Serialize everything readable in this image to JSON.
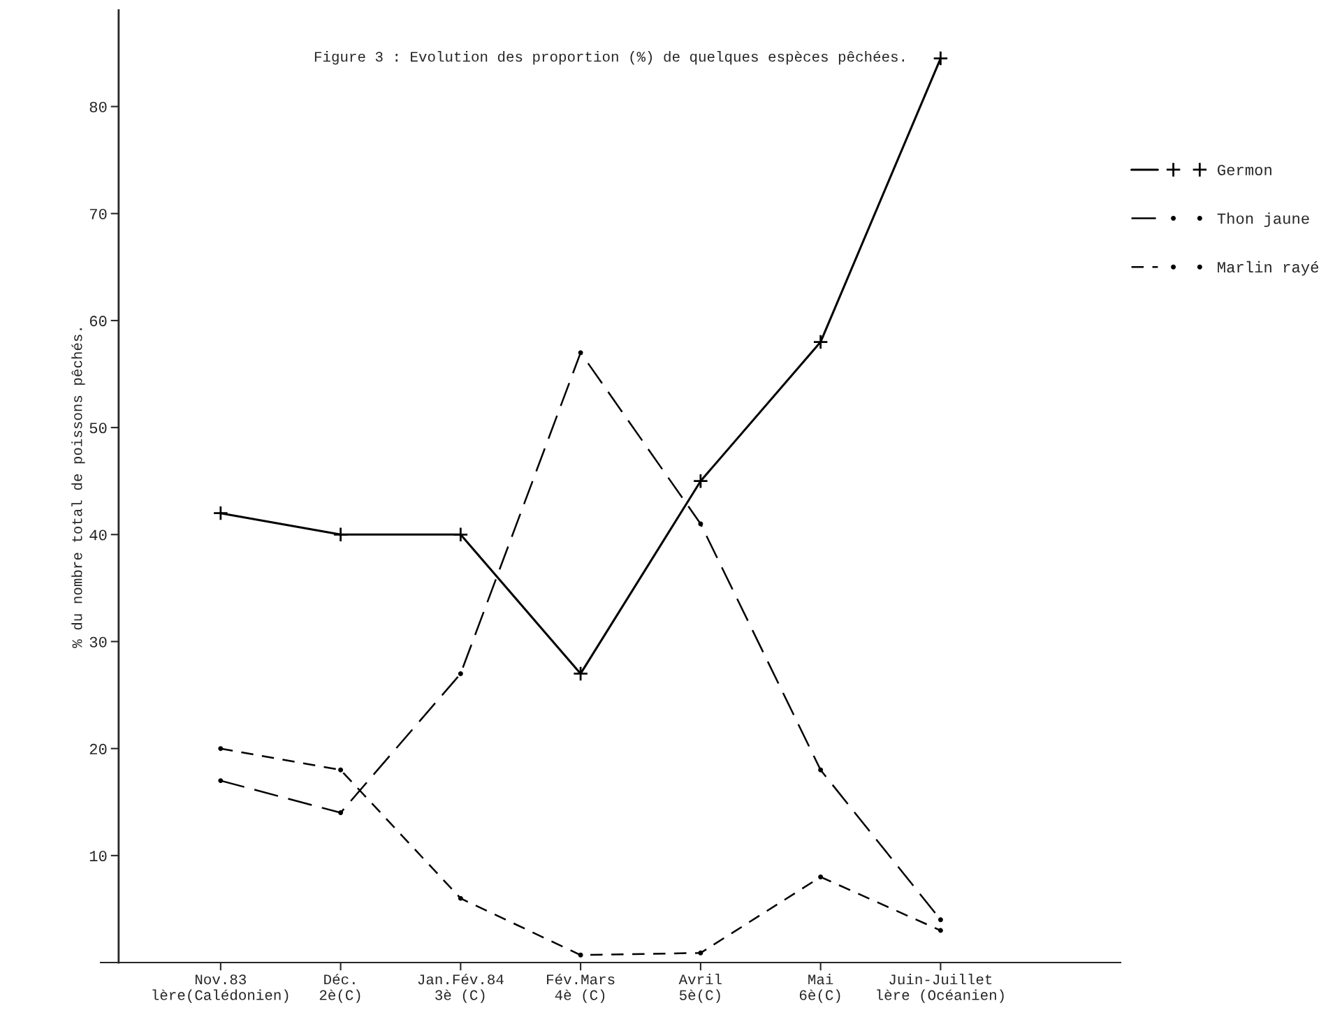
{
  "chart_data": {
    "type": "line",
    "title": "Figure 3 : Evolution des proportion (%) de quelques espèces pêchées.",
    "ylabel": "% du nombre total de poissons pêchés.",
    "categories": [
      "Nov.83\nlère(Calédonien)",
      "Déc.\n2è(C)",
      "Jan.Fév.84\n3è (C)",
      "Fév.Mars\n4è (C)",
      "Avril\n5è(C)",
      "Mai\n6è(C)",
      "Juin-Juillet\nlère (Océanien)"
    ],
    "series": [
      {
        "name": "Germon",
        "color": "#000000",
        "values": [
          42,
          40,
          40,
          27,
          45,
          58,
          84.5
        ],
        "marker": "cross",
        "line_style": "solid"
      },
      {
        "name": "Thon jaune",
        "color": "#000000",
        "values": [
          17,
          14,
          27,
          57,
          41,
          18,
          4
        ],
        "marker": "circle",
        "line_style": "dashed"
      },
      {
        "name": "Marlin rayé",
        "color": "#000000",
        "values": [
          20,
          18,
          6,
          0.7,
          0.9,
          8,
          3
        ],
        "marker": "circle",
        "line_style": "dashed"
      }
    ],
    "ylim": [
      0,
      89
    ],
    "yticks": [
      10,
      20,
      30,
      40,
      50,
      60,
      70,
      80
    ],
    "grid": false,
    "legend": "right"
  }
}
